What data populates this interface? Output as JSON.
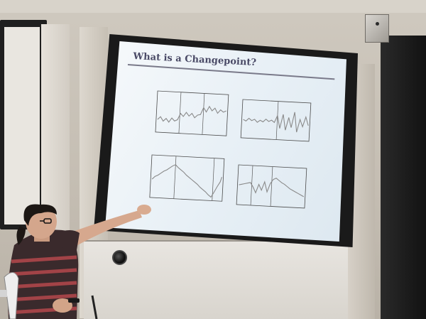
{
  "slide": {
    "title": "What is a Changepoint?"
  }
}
